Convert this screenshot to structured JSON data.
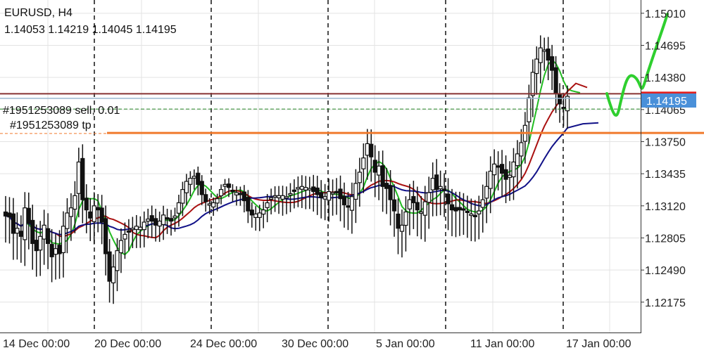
{
  "header": {
    "symbol_timeframe": "EURUSD, H4",
    "ohlc": "1.14053 1.14219 1.14045 1.14195"
  },
  "order_labels": {
    "sell": "#1951253089 sell, 0.01",
    "tp": "#1951253089 tp"
  },
  "price_badge": "1.14195",
  "colors": {
    "background": "#ffffff",
    "grid": "#e3e3e3",
    "candle": "#111111",
    "ma_fast": "#22bb22",
    "ma_mid": "#aa1111",
    "ma_slow": "#111188",
    "order_line": "#883333",
    "bid_line": "#9ab7cf",
    "tp_line": "#f07a2c",
    "badge_bg": "#4a90d9",
    "badge_text": "#ffffff",
    "projection": "#2fcf2f",
    "marker_red": "#e02020"
  },
  "chart_data": {
    "type": "candlestick",
    "symbol": "EURUSD",
    "timeframe": "H4",
    "ylim": [
      1.1187,
      1.1514
    ],
    "y_ticks": [
      "1.15010",
      "1.14695",
      "1.14380",
      "1.14065",
      "1.13750",
      "1.13435",
      "1.13120",
      "1.12805",
      "1.12490",
      "1.12175"
    ],
    "y_tick_values": [
      1.1501,
      1.14695,
      1.1438,
      1.14065,
      1.1375,
      1.13435,
      1.1312,
      1.12805,
      1.1249,
      1.12175
    ],
    "x_ticks": [
      "14 Dec 00:00",
      "20 Dec 00:00",
      "24 Dec 00:00",
      "30 Dec 00:00",
      "5 Jan 00:00",
      "11 Jan 00:00",
      "17 Jan 00:00"
    ],
    "grid": true,
    "current_price": 1.14195,
    "levels": {
      "sell_order": 1.1422,
      "bid": 1.14175,
      "dotted": 1.1407,
      "tp": 1.1383,
      "tp_thick": 1.13835
    },
    "series": [
      {
        "name": "candles",
        "close": [
          1.1302,
          1.1301,
          1.1285,
          1.129,
          1.1282,
          1.131,
          1.1295,
          1.1275,
          1.1268,
          1.1282,
          1.1293,
          1.1275,
          1.1262,
          1.127,
          1.1265,
          1.1292,
          1.1305,
          1.131,
          1.1322,
          1.1355,
          1.1318,
          1.1308,
          1.13,
          1.1312,
          1.1308,
          1.1296,
          1.1265,
          1.1238,
          1.1252,
          1.1268,
          1.1278,
          1.1284,
          1.1287,
          1.129,
          1.1292,
          1.1291,
          1.1296,
          1.1299,
          1.1297,
          1.1293,
          1.1297,
          1.1303,
          1.1299,
          1.1297,
          1.1302,
          1.1315,
          1.1328,
          1.1336,
          1.1339,
          1.1341,
          1.1333,
          1.1323,
          1.1316,
          1.1314,
          1.1315,
          1.1319,
          1.1328,
          1.1333,
          1.133,
          1.1326,
          1.1325,
          1.1323,
          1.1317,
          1.1307,
          1.1303,
          1.1304,
          1.1305,
          1.1308,
          1.1315,
          1.132,
          1.1322,
          1.1322,
          1.1322,
          1.1321,
          1.1324,
          1.1327,
          1.133,
          1.1331,
          1.133,
          1.1329,
          1.1326,
          1.1323,
          1.132,
          1.1321,
          1.1326,
          1.1325,
          1.1325,
          1.1319,
          1.1313,
          1.1311,
          1.1321,
          1.1334,
          1.1345,
          1.1359,
          1.1373,
          1.136,
          1.1345,
          1.1351,
          1.1331,
          1.1329,
          1.1318,
          1.1307,
          1.129,
          1.1293,
          1.1306,
          1.1318,
          1.1315,
          1.1308,
          1.1306,
          1.1316,
          1.1325,
          1.1339,
          1.1328,
          1.1331,
          1.1327,
          1.1314,
          1.1308,
          1.1307,
          1.1308,
          1.1309,
          1.1306,
          1.1304,
          1.1302,
          1.1307,
          1.1318,
          1.1331,
          1.1346,
          1.1353,
          1.1351,
          1.1344,
          1.1338,
          1.1342,
          1.1355,
          1.1363,
          1.1374,
          1.1391,
          1.1418,
          1.1443,
          1.1456,
          1.1467,
          1.1465,
          1.1455,
          1.1445,
          1.1422,
          1.1412,
          1.1408,
          1.14195
        ]
      },
      {
        "name": "ma_fast"
      },
      {
        "name": "ma_mid"
      },
      {
        "name": "ma_slow"
      }
    ]
  }
}
